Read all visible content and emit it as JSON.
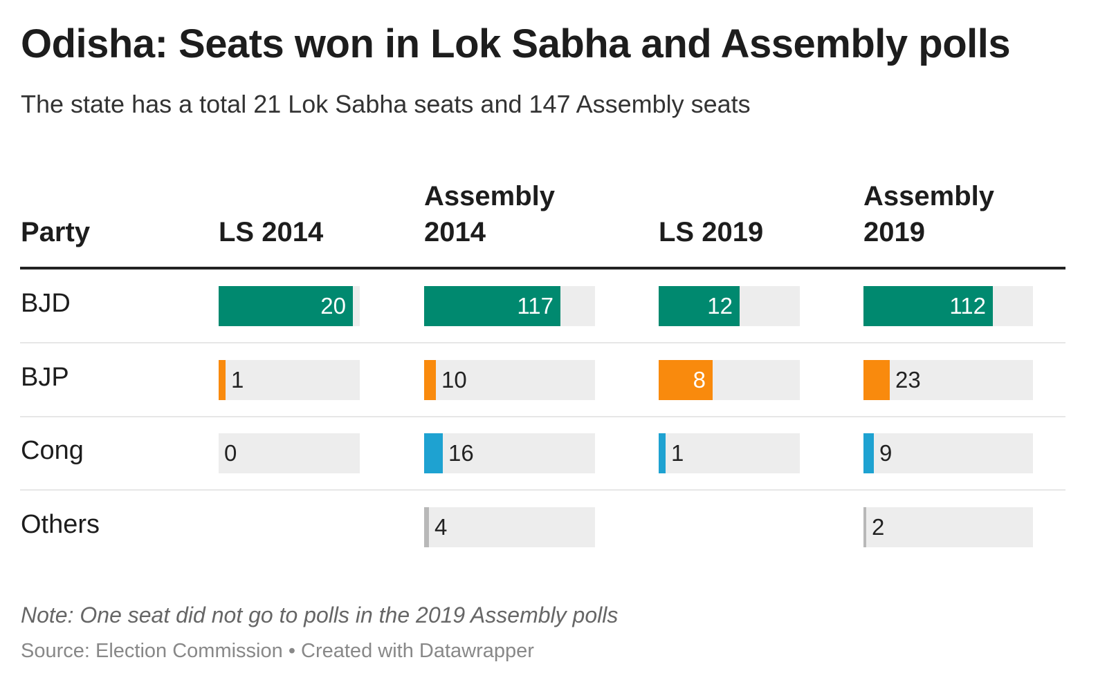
{
  "chart_data": {
    "type": "table",
    "title": "Odisha: Seats won in Lok Sabha and Assembly polls",
    "subtitle": "The state has a total 21 Lok Sabha seats and 147 Assembly seats",
    "party_header": "Party",
    "columns": [
      {
        "key": "ls2014",
        "label_lines": [
          "",
          "LS 2014"
        ],
        "max": 21
      },
      {
        "key": "as2014",
        "label_lines": [
          "Assembly",
          "2014"
        ],
        "max": 147
      },
      {
        "key": "ls2019",
        "label_lines": [
          "",
          "LS 2019"
        ],
        "max": 21
      },
      {
        "key": "as2019",
        "label_lines": [
          "Assembly",
          "2019"
        ],
        "max": 147
      }
    ],
    "rows": [
      {
        "party": "BJD",
        "color": "#00896f",
        "values": {
          "ls2014": 20,
          "as2014": 117,
          "ls2019": 12,
          "as2019": 112
        }
      },
      {
        "party": "BJP",
        "color": "#f98a0d",
        "values": {
          "ls2014": 1,
          "as2014": 10,
          "ls2019": 8,
          "as2019": 23
        }
      },
      {
        "party": "Cong",
        "color": "#1ea2d1",
        "values": {
          "ls2014": 0,
          "as2014": 16,
          "ls2019": 1,
          "as2019": 9
        }
      },
      {
        "party": "Others",
        "color": "#b8b8b8",
        "values": {
          "ls2014": null,
          "as2014": 4,
          "ls2019": null,
          "as2019": 2
        }
      }
    ],
    "note": "Note: One seat did not go to polls in the 2019 Assembly polls",
    "source": "Source: Election Commission • Created with Datawrapper"
  }
}
